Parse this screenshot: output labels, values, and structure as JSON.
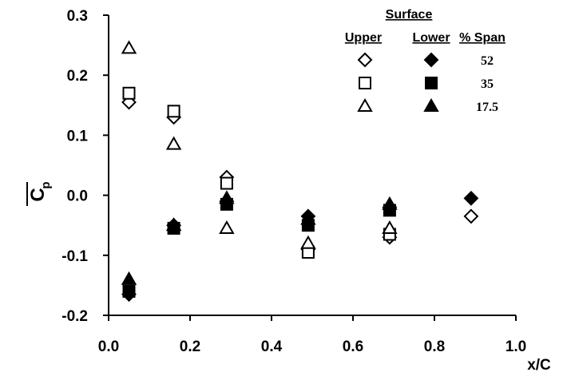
{
  "chart_data": {
    "type": "scatter",
    "xlabel": "x/C",
    "ylabel": "C",
    "xlim": [
      0.0,
      1.0
    ],
    "ylim": [
      -0.2,
      0.3
    ],
    "x_ticks": [
      "0.0",
      "0.2",
      "0.4",
      "0.6",
      "0.8",
      "1.0"
    ],
    "y_ticks": [
      "0.3",
      "0.2",
      "0.1",
      "0.0",
      "-0.1",
      "-0.2"
    ],
    "grid": false,
    "legend": {
      "placement": "top-right",
      "title": "Surface",
      "col_upper": "Upper",
      "col_lower": "Lower",
      "col_span": "% Span",
      "rows": [
        {
          "span": "52",
          "upper_marker": "diamond-open",
          "lower_marker": "diamond-filled"
        },
        {
          "span": "35",
          "upper_marker": "square-open",
          "lower_marker": "square-filled"
        },
        {
          "span": "17.5",
          "upper_marker": "triangle-open",
          "lower_marker": "triangle-filled"
        }
      ]
    },
    "series": [
      {
        "span": "52",
        "surface": "Upper",
        "marker": "diamond-open",
        "x": [
          0.05,
          0.16,
          0.29,
          0.49,
          0.69,
          0.89
        ],
        "y": [
          0.155,
          0.13,
          0.03,
          -0.09,
          -0.07,
          -0.035
        ]
      },
      {
        "span": "52",
        "surface": "Lower",
        "marker": "diamond-filled",
        "x": [
          0.05,
          0.16,
          0.29,
          0.49,
          0.69,
          0.89
        ],
        "y": [
          -0.165,
          -0.05,
          -0.01,
          -0.035,
          -0.02,
          -0.005
        ]
      },
      {
        "span": "35",
        "surface": "Upper",
        "marker": "square-open",
        "x": [
          0.05,
          0.16,
          0.29,
          0.49,
          0.69
        ],
        "y": [
          0.17,
          0.14,
          0.02,
          -0.095,
          -0.065
        ]
      },
      {
        "span": "35",
        "surface": "Lower",
        "marker": "square-filled",
        "x": [
          0.05,
          0.16,
          0.29,
          0.49,
          0.69
        ],
        "y": [
          -0.16,
          -0.055,
          -0.015,
          -0.05,
          -0.025
        ]
      },
      {
        "span": "17.5",
        "surface": "Upper",
        "marker": "triangle-open",
        "x": [
          0.05,
          0.16,
          0.29,
          0.49,
          0.69
        ],
        "y": [
          0.245,
          0.085,
          -0.055,
          -0.08,
          -0.055
        ]
      },
      {
        "span": "17.5",
        "surface": "Lower",
        "marker": "triangle-filled",
        "x": [
          0.05,
          0.16,
          0.29,
          0.49,
          0.69
        ],
        "y": [
          -0.14,
          -0.05,
          -0.005,
          -0.04,
          -0.015
        ]
      }
    ]
  }
}
